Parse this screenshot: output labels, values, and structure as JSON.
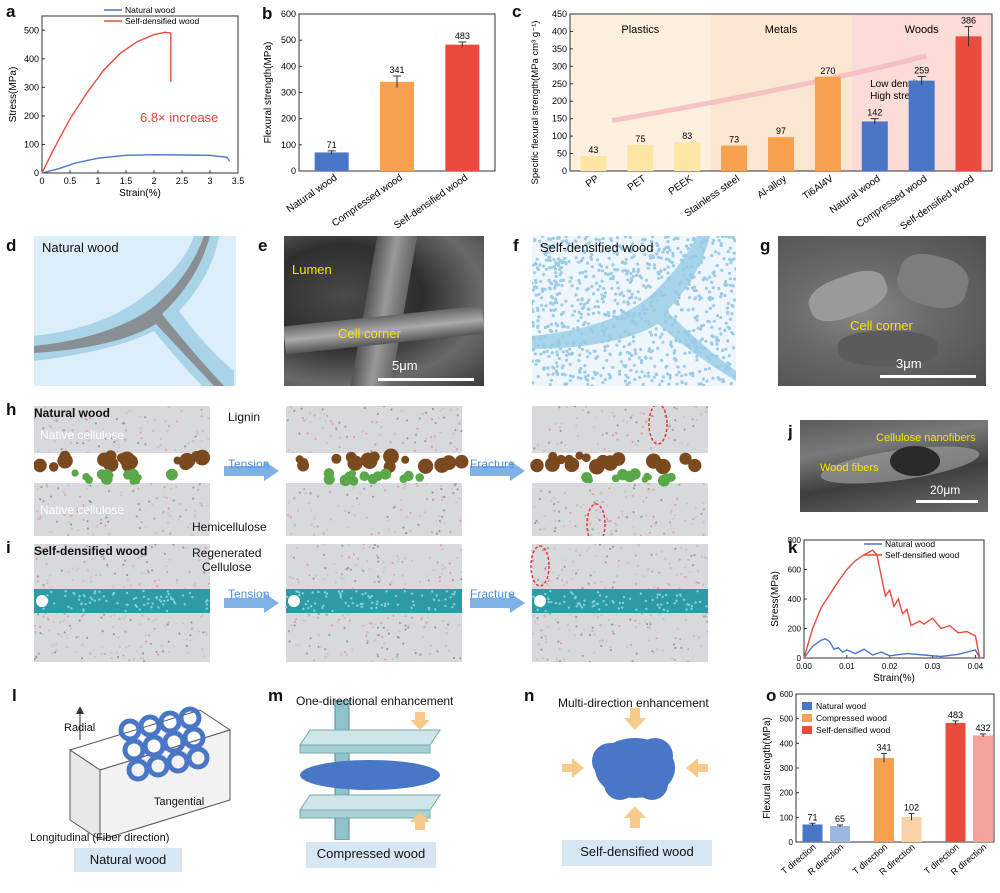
{
  "panel_labels": {
    "a": "a",
    "b": "b",
    "c": "c",
    "d": "d",
    "e": "e",
    "f": "f",
    "g": "g",
    "h": "h",
    "i": "i",
    "j": "j",
    "k": "k",
    "l": "l",
    "m": "m",
    "n": "n",
    "o": "o"
  },
  "colors": {
    "natural": "#4a76c7",
    "compressed": "#f7a04f",
    "self": "#ea4b3c",
    "red": "#e8413a",
    "blue": "#4a76c7"
  },
  "panel_a": {
    "annotation": "6.8× increase"
  },
  "panel_d": {
    "title": "Natural wood"
  },
  "panel_e": {
    "lumen": "Lumen",
    "cell_corner": "Cell corner",
    "scale": "5μm"
  },
  "panel_f": {
    "title": "Self-densified wood"
  },
  "panel_g": {
    "cell_corner": "Cell corner",
    "scale": "3μm"
  },
  "panel_h": {
    "title": "Natural wood",
    "native1": "Native cellulose",
    "native2": "Native cellulose",
    "lignin": "Lignin",
    "hemi": "Hemicellulose",
    "tension": "Tension",
    "fracture": "Fracture"
  },
  "panel_i": {
    "title": "Self-densified wood",
    "regen1": "Regenerated",
    "regen2": "Cellulose",
    "tension": "Tension",
    "fracture": "Fracture"
  },
  "panel_j": {
    "nanofibers": "Cellulose nanofibers",
    "fibers": "Wood fibers",
    "scale": "20μm"
  },
  "panel_l": {
    "radial": "Radial",
    "tangential": "Tangential",
    "longitudinal": "Longitudinal (Fiber direction)",
    "caption": "Natural wood"
  },
  "panel_m": {
    "title": "One-directional enhancement",
    "caption": "Compressed wood"
  },
  "panel_n": {
    "title": "Multi-direction enhancement",
    "caption": "Self-densified wood"
  },
  "chart_data": [
    {
      "id": "a",
      "type": "line",
      "xlabel": "Strain(%)",
      "ylabel": "Stress(MPa)",
      "xlim": [
        0,
        3.5
      ],
      "ylim": [
        0,
        550
      ],
      "xticks": [
        0,
        0.5,
        1.0,
        1.5,
        2.0,
        2.5,
        3.0,
        3.5
      ],
      "yticks": [
        0,
        100,
        200,
        300,
        400,
        500
      ],
      "series": [
        {
          "name": "Natural wood",
          "color": "#4a76c7",
          "points": [
            [
              0,
              0
            ],
            [
              0.3,
              15
            ],
            [
              0.6,
              35
            ],
            [
              1.0,
              52
            ],
            [
              1.5,
              62
            ],
            [
              2.0,
              64
            ],
            [
              2.5,
              63
            ],
            [
              3.0,
              62
            ],
            [
              3.3,
              55
            ],
            [
              3.35,
              42
            ]
          ]
        },
        {
          "name": "Self-densified wood",
          "color": "#ea4b3c",
          "points": [
            [
              0,
              0
            ],
            [
              0.2,
              80
            ],
            [
              0.5,
              190
            ],
            [
              0.8,
              280
            ],
            [
              1.1,
              360
            ],
            [
              1.4,
              420
            ],
            [
              1.7,
              460
            ],
            [
              2.0,
              485
            ],
            [
              2.2,
              493
            ],
            [
              2.3,
              490
            ],
            [
              2.3,
              320
            ]
          ]
        }
      ]
    },
    {
      "id": "b",
      "type": "bar",
      "ylabel": "Flexural strength(MPa)",
      "ylim": [
        0,
        600
      ],
      "yticks": [
        0,
        100,
        200,
        300,
        400,
        500,
        600
      ],
      "categories": [
        "Natural wood",
        "Compressed wood",
        "Self-densified wood"
      ],
      "values": [
        71,
        341,
        483
      ],
      "errors": [
        6,
        22,
        10
      ],
      "colors": [
        "#4a76c7",
        "#f7a04f",
        "#ea4b3c"
      ]
    },
    {
      "id": "c",
      "type": "bar",
      "ylabel": "Specific flexural strength(MPa cm³ g⁻¹)",
      "ylim": [
        0,
        450
      ],
      "yticks": [
        0,
        50,
        100,
        150,
        200,
        250,
        300,
        350,
        400,
        450
      ],
      "groups": [
        {
          "name": "Plastics",
          "span": [
            0,
            2
          ],
          "color": "#fdf0df"
        },
        {
          "name": "Metals",
          "span": [
            3,
            5
          ],
          "color": "#fbe6d2"
        },
        {
          "name": "Woods",
          "span": [
            6,
            8
          ],
          "color": "#fbdcd7"
        }
      ],
      "annotation": [
        "Low density",
        "High strength"
      ],
      "categories": [
        "PP",
        "PET",
        "PEEK",
        "Stainless steel",
        "Al-alloy",
        "Ti6Al4V",
        "Natural wood",
        "Compressed wood",
        "Self-densified wood"
      ],
      "values": [
        43,
        75,
        83,
        73,
        97,
        270,
        142,
        259,
        386
      ],
      "errors": [
        0,
        0,
        0,
        0,
        0,
        0,
        8,
        12,
        28
      ],
      "colors": [
        "#fde6a3",
        "#fde6a3",
        "#fde6a3",
        "#f7a04f",
        "#f7a04f",
        "#f7a04f",
        "#4a76c7",
        "#4a76c7",
        "#ea4b3c"
      ]
    },
    {
      "id": "k",
      "type": "line",
      "xlabel": "Strain(%)",
      "ylabel": "Stress(MPa)",
      "xlim": [
        0,
        0.042
      ],
      "ylim": [
        0,
        800
      ],
      "xticks": [
        0.0,
        0.01,
        0.02,
        0.03,
        0.04
      ],
      "yticks": [
        0,
        200,
        400,
        600,
        800
      ],
      "series": [
        {
          "name": "Natural wood",
          "color": "#4a76c7",
          "points": [
            [
              0,
              0
            ],
            [
              0.002,
              80
            ],
            [
              0.004,
              120
            ],
            [
              0.005,
              130
            ],
            [
              0.006,
              110
            ],
            [
              0.007,
              60
            ],
            [
              0.008,
              70
            ],
            [
              0.009,
              40
            ],
            [
              0.01,
              55
            ],
            [
              0.012,
              30
            ],
            [
              0.014,
              60
            ],
            [
              0.016,
              20
            ],
            [
              0.018,
              40
            ],
            [
              0.02,
              15
            ],
            [
              0.024,
              30
            ],
            [
              0.028,
              20
            ],
            [
              0.032,
              10
            ],
            [
              0.036,
              25
            ],
            [
              0.04,
              55
            ],
            [
              0.041,
              0
            ]
          ]
        },
        {
          "name": "Self-densified wood",
          "color": "#ea4b3c",
          "points": [
            [
              0,
              0
            ],
            [
              0.002,
              200
            ],
            [
              0.004,
              340
            ],
            [
              0.006,
              430
            ],
            [
              0.008,
              520
            ],
            [
              0.01,
              600
            ],
            [
              0.012,
              660
            ],
            [
              0.014,
              700
            ],
            [
              0.016,
              730
            ],
            [
              0.017,
              700
            ],
            [
              0.018,
              560
            ],
            [
              0.019,
              420
            ],
            [
              0.02,
              460
            ],
            [
              0.021,
              350
            ],
            [
              0.022,
              400
            ],
            [
              0.023,
              300
            ],
            [
              0.024,
              330
            ],
            [
              0.025,
              220
            ],
            [
              0.027,
              250
            ],
            [
              0.028,
              230
            ],
            [
              0.03,
              270
            ],
            [
              0.032,
              200
            ],
            [
              0.034,
              220
            ],
            [
              0.036,
              170
            ],
            [
              0.038,
              180
            ],
            [
              0.04,
              150
            ],
            [
              0.041,
              0
            ]
          ]
        }
      ]
    },
    {
      "id": "o",
      "type": "bar",
      "ylabel": "Flexural strength(MPa)",
      "ylim": [
        0,
        600
      ],
      "yticks": [
        0,
        100,
        200,
        300,
        400,
        500,
        600
      ],
      "categories": [
        "T direction",
        "R direction",
        "T direction",
        "R direction",
        "T direction",
        "R direction"
      ],
      "legend": [
        "Natural wood",
        "Compressed wood",
        "Self-densified wood"
      ],
      "values": [
        71,
        65,
        341,
        102,
        483,
        432
      ],
      "errors": [
        5,
        4,
        18,
        14,
        8,
        6
      ],
      "colors": [
        "#4a76c7",
        "#9db6e0",
        "#f7a04f",
        "#fcd2a8",
        "#ea4b3c",
        "#f5a49b"
      ]
    }
  ]
}
